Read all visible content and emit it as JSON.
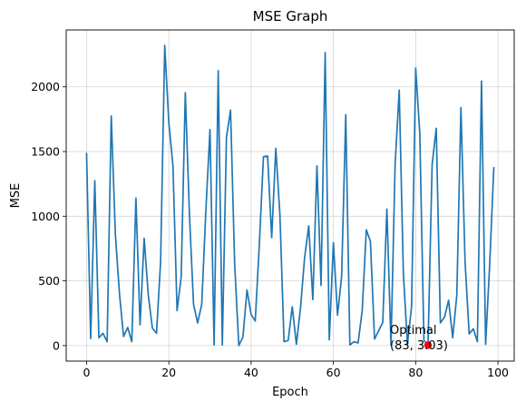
{
  "chart_data": {
    "type": "line",
    "title": "MSE Graph",
    "xlabel": "Epoch",
    "ylabel": "MSE",
    "xlim": [
      -4.95,
      103.95
    ],
    "ylim": [
      -120,
      2440
    ],
    "grid": true,
    "xticks": [
      0,
      20,
      40,
      60,
      80,
      100
    ],
    "yticks": [
      0,
      500,
      1000,
      1500,
      2000
    ],
    "line_color": "#1f77b4",
    "marker_color": "#ff0000",
    "series": [
      {
        "x": [
          0,
          1,
          2,
          3,
          4,
          5,
          6,
          7,
          8,
          9,
          10,
          11,
          12,
          13,
          14,
          15,
          16,
          17,
          18,
          19,
          20,
          21,
          22,
          23,
          24,
          25,
          26,
          27,
          28,
          29,
          30,
          31,
          32,
          33,
          34,
          35,
          36,
          37,
          38,
          39,
          40,
          41,
          42,
          43,
          44,
          45,
          46,
          47,
          48,
          49,
          50,
          51,
          52,
          53,
          54,
          55,
          56,
          57,
          58,
          59,
          60,
          61,
          62,
          63,
          64,
          65,
          66,
          67,
          68,
          69,
          70,
          71,
          72,
          73,
          74,
          75,
          76,
          77,
          78,
          79,
          80,
          81,
          82,
          83,
          84,
          85,
          86,
          87,
          88,
          89,
          90,
          91,
          92,
          93,
          94,
          95,
          96,
          97,
          98,
          99
        ],
        "values": [
          1490,
          55,
          1275,
          60,
          95,
          30,
          1775,
          860,
          400,
          70,
          140,
          30,
          1140,
          160,
          830,
          390,
          135,
          95,
          650,
          2320,
          1720,
          1390,
          270,
          530,
          1955,
          1020,
          320,
          175,
          320,
          1045,
          1670,
          5,
          2125,
          5,
          1610,
          1820,
          630,
          0,
          65,
          430,
          240,
          190,
          785,
          1460,
          1465,
          835,
          1525,
          1010,
          30,
          40,
          300,
          10,
          290,
          680,
          925,
          355,
          1390,
          465,
          2265,
          45,
          795,
          235,
          535,
          1785,
          5,
          30,
          20,
          270,
          895,
          805,
          50,
          115,
          180,
          1055,
          5,
          1400,
          1975,
          560,
          10,
          300,
          2145,
          1640,
          40,
          3,
          1400,
          1680,
          175,
          220,
          350,
          60,
          390,
          1840,
          650,
          90,
          130,
          30,
          2045,
          10,
          635,
          1380
        ]
      }
    ],
    "optimal": {
      "x": 83,
      "y": 3,
      "label_line1": "Optimal",
      "label_line2": "(83, 3.03)"
    }
  }
}
